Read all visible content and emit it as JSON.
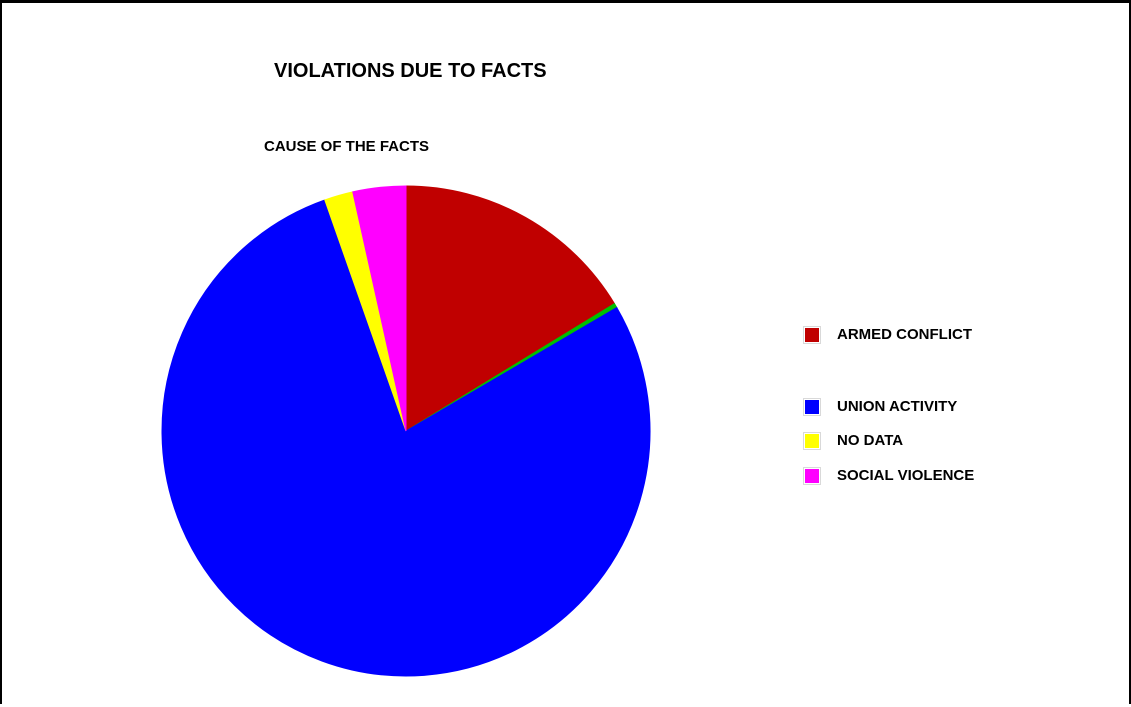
{
  "chart_data": {
    "type": "pie",
    "title": "VIOLATIONS DUE TO FACTS",
    "subtitle": "CAUSE OF THE FACTS",
    "legend_placement": "right",
    "slices": [
      {
        "label": "ARMED CONFLICT",
        "value": 16.3,
        "color": "#c00000"
      },
      {
        "label": "",
        "value": 0.3,
        "color": "#00c000"
      },
      {
        "label": "UNION ACTIVITY",
        "value": 78.0,
        "color": "#0000ff"
      },
      {
        "label": "NO DATA",
        "value": 1.9,
        "color": "#ffff00"
      },
      {
        "label": "SOCIAL VIOLENCE",
        "value": 3.5,
        "color": "#ff00ff"
      }
    ],
    "legend": [
      {
        "label": "ARMED CONFLICT",
        "color": "#c00000"
      },
      {
        "label": "UNION ACTIVITY",
        "color": "#0000ff"
      },
      {
        "label": "NO DATA",
        "color": "#ffff00"
      },
      {
        "label": "SOCIAL VIOLENCE",
        "color": "#ff00ff"
      }
    ]
  }
}
